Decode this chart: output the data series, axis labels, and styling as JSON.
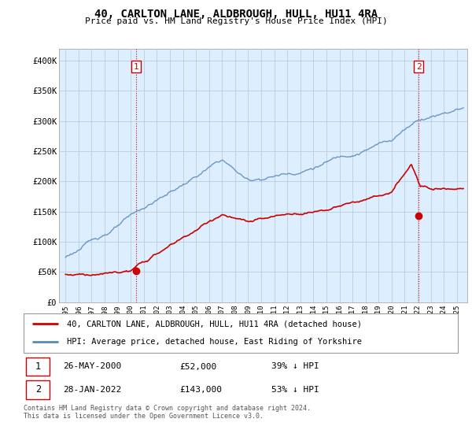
{
  "title": "40, CARLTON LANE, ALDBROUGH, HULL, HU11 4RA",
  "subtitle": "Price paid vs. HM Land Registry's House Price Index (HPI)",
  "legend_line1": "40, CARLTON LANE, ALDBROUGH, HULL, HU11 4RA (detached house)",
  "legend_line2": "HPI: Average price, detached house, East Riding of Yorkshire",
  "footnote": "Contains HM Land Registry data © Crown copyright and database right 2024.\nThis data is licensed under the Open Government Licence v3.0.",
  "transaction1_date": "26-MAY-2000",
  "transaction1_price": "£52,000",
  "transaction1_hpi": "39% ↓ HPI",
  "transaction2_date": "28-JAN-2022",
  "transaction2_price": "£143,000",
  "transaction2_hpi": "53% ↓ HPI",
  "red_color": "#cc0000",
  "blue_color": "#5588bb",
  "bg_fill_color": "#ddeeff",
  "background_color": "#ffffff",
  "grid_color": "#bbccdd",
  "ylim_min": 0,
  "ylim_max": 420000,
  "yticks": [
    0,
    50000,
    100000,
    150000,
    200000,
    250000,
    300000,
    350000,
    400000
  ],
  "ytick_labels": [
    "£0",
    "£50K",
    "£100K",
    "£150K",
    "£200K",
    "£250K",
    "£300K",
    "£350K",
    "£400K"
  ],
  "transaction1_x": 2000.4,
  "transaction1_y": 52000,
  "transaction2_x": 2022.08,
  "transaction2_y": 143000,
  "transaction1_vline_x": 2000.4,
  "transaction2_vline_x": 2022.08,
  "xlim_min": 1994.5,
  "xlim_max": 2025.8
}
